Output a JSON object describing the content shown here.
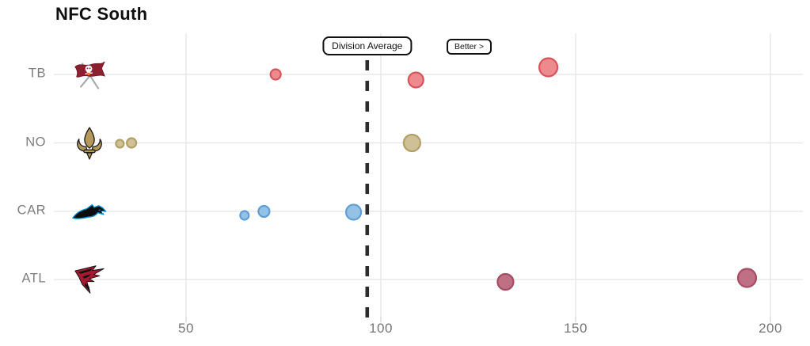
{
  "title": "NFC South",
  "annotations": {
    "division_average_label": "Division Average",
    "better_label": "Better >"
  },
  "colors": {
    "gridline": "#e4e4e4",
    "tick": "#d6d6d6",
    "dashed_line": "#2d2d2d",
    "label": "#7d7d7d",
    "title": "#0f0f0f"
  },
  "teams": [
    {
      "abbr": "TB",
      "logo": "tampa-bay-buccaneers-logo"
    },
    {
      "abbr": "NO",
      "logo": "new-orleans-saints-logo"
    },
    {
      "abbr": "CAR",
      "logo": "carolina-panthers-logo"
    },
    {
      "abbr": "ATL",
      "logo": "atlanta-falcons-logo"
    }
  ],
  "chart_data": {
    "type": "scatter",
    "title": "NFC South",
    "xlabel": "",
    "ylabel": "",
    "xlim": [
      16,
      208
    ],
    "x_ticks": [
      50,
      100,
      150,
      200
    ],
    "grid": true,
    "legend_position": "none",
    "division_average": 96.5,
    "categories": [
      "TB",
      "NO",
      "CAR",
      "ATL"
    ],
    "series": [
      {
        "name": "TB",
        "fill": "#ec8a8e",
        "stroke": "#d6555c",
        "points": [
          {
            "x": 73,
            "size": "small",
            "r": 6.5,
            "dy": 0
          },
          {
            "x": 109,
            "size": "medium",
            "r": 9.5,
            "dy": 7
          },
          {
            "x": 143,
            "size": "large",
            "r": 11.5,
            "dy": -9
          }
        ]
      },
      {
        "name": "NO",
        "fill": "#cfc095",
        "stroke": "#b3a068",
        "points": [
          {
            "x": 33,
            "size": "small",
            "r": 5,
            "dy": 1
          },
          {
            "x": 36,
            "size": "small",
            "r": 6,
            "dy": 0
          },
          {
            "x": 108,
            "size": "large",
            "r": 10.5,
            "dy": 0
          }
        ]
      },
      {
        "name": "CAR",
        "fill": "#94c1e6",
        "stroke": "#5f9fd6",
        "points": [
          {
            "x": 65,
            "size": "small",
            "r": 5.5,
            "dy": 5
          },
          {
            "x": 70,
            "size": "small",
            "r": 7,
            "dy": 0
          },
          {
            "x": 93,
            "size": "medium",
            "r": 9.5,
            "dy": 1
          }
        ]
      },
      {
        "name": "ATL",
        "fill": "#c07084",
        "stroke": "#a64c63",
        "points": [
          {
            "x": 132,
            "size": "medium",
            "r": 10,
            "dy": 3
          },
          {
            "x": 194,
            "size": "large",
            "r": 11.5,
            "dy": -2
          }
        ]
      }
    ]
  }
}
